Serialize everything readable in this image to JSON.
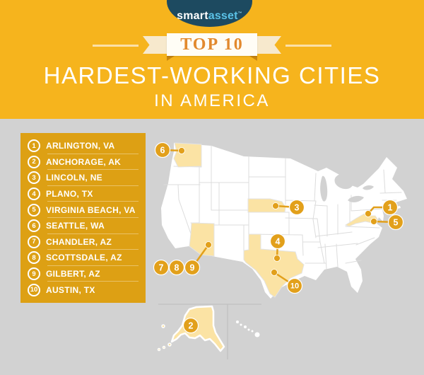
{
  "brand": {
    "logo_part1": "smart",
    "logo_part2": "asset",
    "trademark": "™"
  },
  "header": {
    "ribbon_label": "TOP 10",
    "title_line1": "HARDEST-WORKING CITIES",
    "title_line2": "IN AMERICA"
  },
  "list": {
    "items": [
      {
        "rank": "1",
        "label": "ARLINGTON, VA"
      },
      {
        "rank": "2",
        "label": "ANCHORAGE, AK"
      },
      {
        "rank": "3",
        "label": "LINCOLN, NE"
      },
      {
        "rank": "4",
        "label": "PLANO, TX"
      },
      {
        "rank": "5",
        "label": "VIRGINIA BEACH, VA"
      },
      {
        "rank": "6",
        "label": "SEATTLE, WA"
      },
      {
        "rank": "7",
        "label": "CHANDLER, AZ"
      },
      {
        "rank": "8",
        "label": "SCOTTSDALE, AZ"
      },
      {
        "rank": "9",
        "label": "GILBERT, AZ"
      },
      {
        "rank": "10",
        "label": "AUSTIN, TX"
      }
    ]
  },
  "map": {
    "highlighted_states": [
      "Washington",
      "Nebraska",
      "Arizona",
      "Texas",
      "Virginia",
      "Alaska"
    ],
    "markers": [
      {
        "number": "1",
        "city": "Arlington, VA",
        "circle": [
          552,
          293
        ],
        "line": [
          [
            552,
            293
          ],
          [
            529,
            293
          ],
          [
            521,
            302
          ]
        ],
        "dot": [
          521,
          302
        ]
      },
      {
        "number": "2",
        "city": "Anchorage, AK",
        "circle": [
          270,
          460
        ]
      },
      {
        "number": "3",
        "city": "Lincoln, NE",
        "circle": [
          420,
          293
        ],
        "line": [
          [
            420,
            293
          ],
          [
            390,
            291
          ]
        ],
        "dot": [
          390,
          291
        ]
      },
      {
        "number": "4",
        "city": "Plano, TX",
        "circle": [
          393,
          341
        ],
        "line": [
          [
            393,
            341
          ],
          [
            392,
            365
          ]
        ],
        "dot": [
          392,
          365
        ]
      },
      {
        "number": "5",
        "city": "Virginia Beach, VA",
        "circle": [
          560,
          314
        ],
        "line": [
          [
            560,
            314
          ],
          [
            529,
            313
          ]
        ],
        "dot": [
          529,
          313
        ]
      },
      {
        "number": "6",
        "city": "Seattle, WA",
        "circle": [
          230,
          212
        ],
        "line": [
          [
            230,
            212
          ],
          [
            257,
            213
          ]
        ],
        "dot": [
          257,
          213
        ]
      },
      {
        "number": "7",
        "city": "Chandler, AZ",
        "circle": [
          228,
          378
        ]
      },
      {
        "number": "8",
        "city": "Scottsdale, AZ",
        "circle": [
          250,
          378
        ]
      },
      {
        "number": "9",
        "city": "Gilbert, AZ",
        "circle": [
          272,
          378
        ],
        "line": [
          [
            272,
            378
          ],
          [
            295,
            346
          ]
        ],
        "dot": [
          295,
          346
        ]
      },
      {
        "number": "10",
        "city": "Austin, TX",
        "circle": [
          417,
          404
        ],
        "line": [
          [
            417,
            404
          ],
          [
            388,
            385
          ]
        ],
        "dot": [
          388,
          385
        ]
      }
    ]
  },
  "colors": {
    "background_yellow": "#f6b41d",
    "panel_gold": "#dda014",
    "marker_gold": "#e2a01b",
    "highlight_state": "#fbe3a4",
    "map_background": "#d2d2d2",
    "state_fill": "#ffffff",
    "state_border": "#dcdcdc",
    "logo_navy": "#1d4a60",
    "logo_cyan": "#5bc2e7",
    "ribbon_cream": "#f7e9cd",
    "ribbon_band": "#fffdf6",
    "top10_orange": "#e2892e"
  }
}
